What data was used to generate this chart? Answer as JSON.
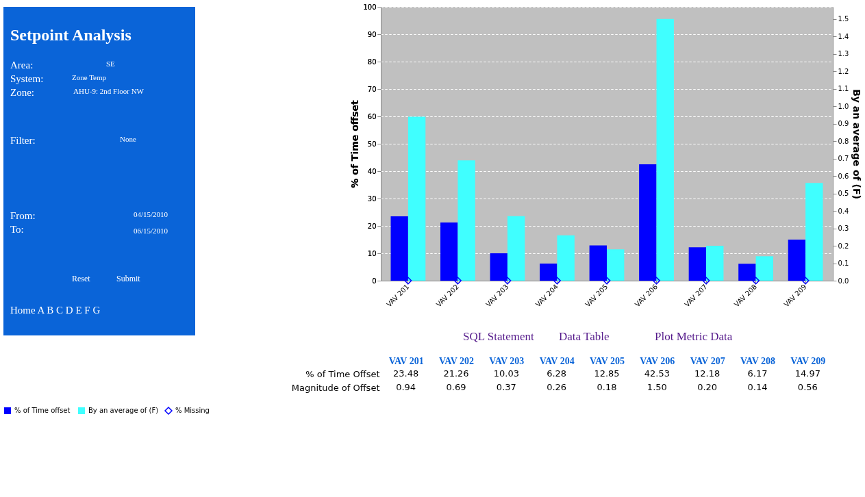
{
  "chart_data": {
    "type": "bar",
    "categories": [
      "VAV 201",
      "VAV 202",
      "VAV 203",
      "VAV 204",
      "VAV 205",
      "VAV 206",
      "VAV 207",
      "VAV 208",
      "VAV 209"
    ],
    "series": [
      {
        "name": "% of Time offset",
        "color": "#0000ff",
        "values": [
          23.48,
          21.26,
          10.03,
          6.28,
          12.85,
          42.53,
          12.18,
          6.17,
          14.97
        ],
        "value_labels": [
          "23.48",
          "21.26",
          "10.03",
          "6.28",
          "12.85",
          "42.53",
          "12.18",
          "6.17",
          "14.97"
        ]
      },
      {
        "name": "By an average of (F)",
        "axis": "y2",
        "color": "#40ffff",
        "values": [
          0.94,
          0.69,
          0.37,
          0.26,
          0.18,
          1.5,
          0.2,
          0.14,
          0.56
        ],
        "value_labels": [
          "0.94",
          "0.69",
          "0.37",
          "0.26",
          "0.18",
          "1.50",
          "0.20",
          "0.14",
          "0.56"
        ]
      },
      {
        "name": "% Missing",
        "type": "scatter",
        "color": "#0000ff",
        "values": [
          0,
          0,
          0,
          0,
          0,
          0,
          0,
          0,
          0
        ]
      }
    ],
    "ylabel": "% of Time offset",
    "y2label": "By an average of (F)",
    "ylim": [
      0,
      100
    ],
    "yticks": [
      0,
      10,
      20,
      30,
      40,
      50,
      60,
      70,
      80,
      90,
      100
    ],
    "y2lim": [
      0,
      1.57
    ],
    "y2ticks": [
      {
        "value": 0,
        "label": "0.0"
      },
      0.1,
      0.2,
      0.3,
      0.4,
      0.5,
      0.6,
      0.7,
      0.8,
      0.9,
      {
        "value": 1,
        "label": "1.0"
      },
      1.1,
      1.2,
      1.3,
      1.4,
      1.5
    ],
    "grid": "y",
    "legend": "bottom",
    "marker": "diamond",
    "annotations": [
      "Setpoint Analysis",
      "Area:",
      "SE",
      "System:",
      "Zone Temp",
      "Zone:",
      "AHU-9: 2nd Floor NW",
      "Filter:",
      "None",
      "From:",
      "04/15/2010",
      "To:",
      "06/15/2010",
      "Reset",
      "Submit",
      "Home A B C D E F G",
      "SQL Statement",
      "Data Table",
      "Plot Metric Data",
      "% of Time Offset",
      "Magnitude of Offset"
    ]
  }
}
